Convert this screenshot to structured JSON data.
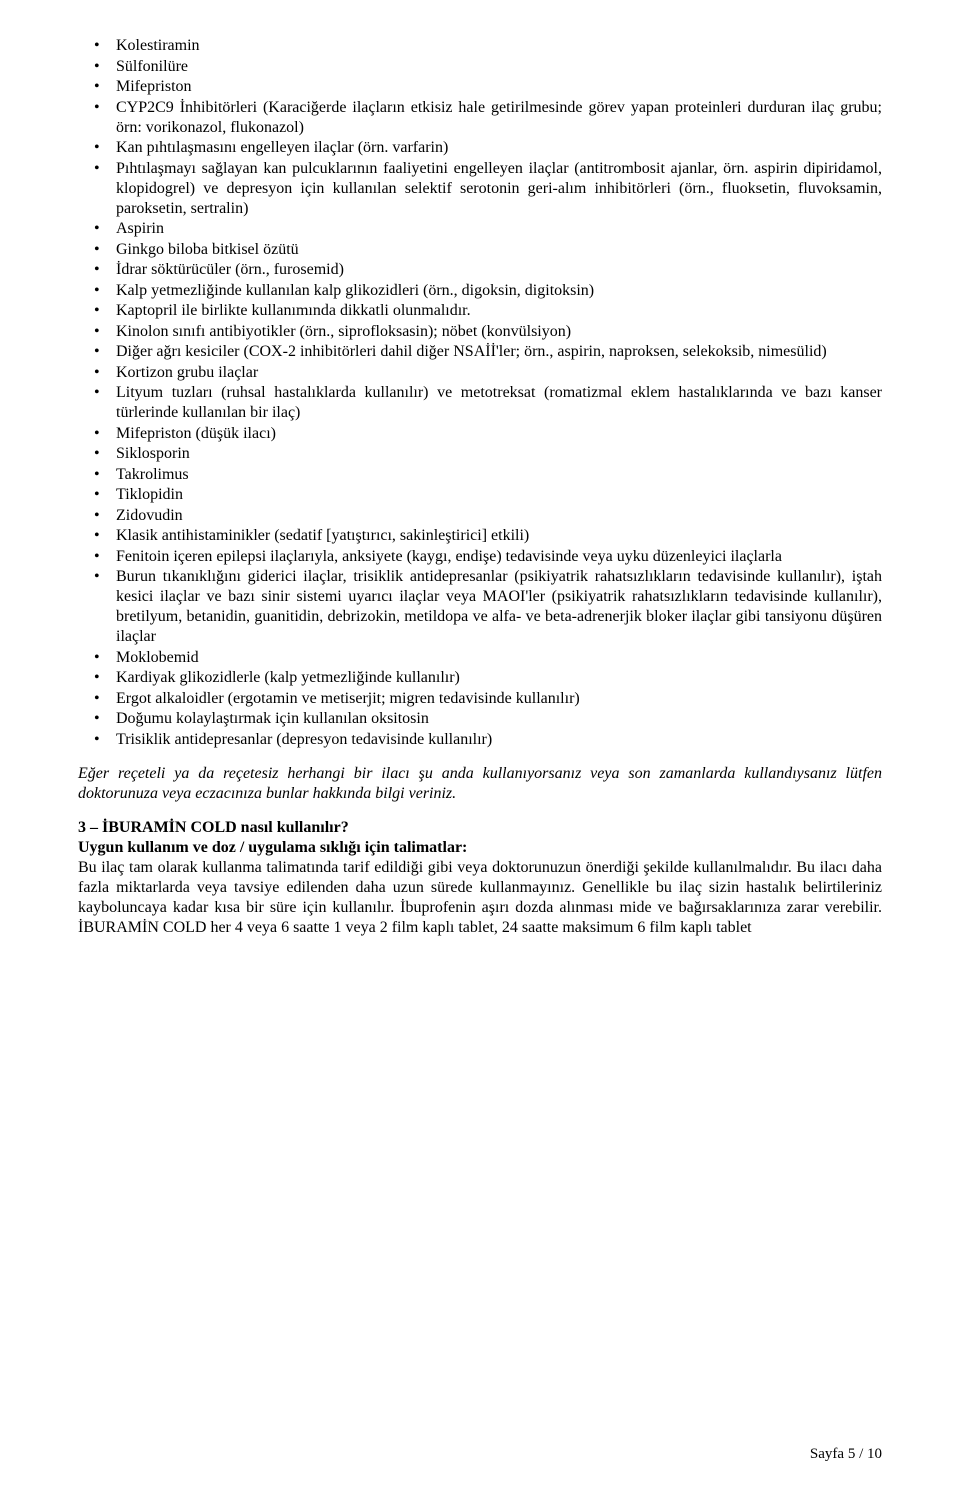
{
  "bullets": [
    "Kolestiramin",
    "Sülfonilüre",
    "Mifepriston",
    "CYP2C9 İnhibitörleri (Karaciğerde ilaçların etkisiz hale getirilmesinde görev yapan proteinleri durduran ilaç grubu; örn: vorikonazol, flukonazol)",
    "Kan pıhtılaşmasını engelleyen ilaçlar (örn. varfarin)",
    "Pıhtılaşmayı sağlayan kan pulcuklarının faaliyetini engelleyen ilaçlar (antitrombosit ajanlar, örn. aspirin dipiridamol, klopidogrel) ve depresyon için kullanılan selektif serotonin geri-alım inhibitörleri (örn., fluoksetin, fluvoksamin, paroksetin, sertralin)",
    "Aspirin",
    "Ginkgo biloba bitkisel özütü",
    "İdrar söktürücüler (örn., furosemid)",
    "Kalp yetmezliğinde kullanılan kalp glikozidleri (örn., digoksin, digitoksin)",
    "Kaptopril ile birlikte kullanımında dikkatli olunmalıdır.",
    "Kinolon sınıfı antibiyotikler (örn., siprofloksasin); nöbet (konvülsiyon)",
    "Diğer ağrı kesiciler (COX-2 inhibitörleri dahil diğer NSAİİ'ler; örn., aspirin, naproksen, selekoksib, nimesülid)",
    "Kortizon grubu ilaçlar",
    "Lityum tuzları (ruhsal hastalıklarda kullanılır) ve metotreksat (romatizmal eklem hastalıklarında ve bazı kanser türlerinde kullanılan bir ilaç)",
    "Mifepriston (düşük ilacı)",
    "Siklosporin",
    "Takrolimus",
    "Tiklopidin",
    "Zidovudin",
    "Klasik antihistaminikler (sedatif [yatıştırıcı, sakinleştirici] etkili)",
    "Fenitoin içeren epilepsi ilaçlarıyla, anksiyete (kaygı, endişe) tedavisinde veya uyku düzenleyici ilaçlarla",
    "Burun tıkanıklığını giderici ilaçlar, trisiklik antidepresanlar (psikiyatrik rahatsızlıkların tedavisinde kullanılır), iştah kesici ilaçlar ve bazı sinir sistemi uyarıcı ilaçlar veya MAOI'ler (psikiyatrik rahatsızlıkların tedavisinde kullanılır), bretilyum, betanidin, guanitidin, debrizokin, metildopa ve alfa- ve beta-adrenerjik bloker ilaçlar gibi tansiyonu düşüren ilaçlar",
    "Moklobemid",
    "Kardiyak glikozidlerle (kalp yetmezliğinde kullanılır)",
    "Ergot alkaloidler (ergotamin ve metiserjit; migren tedavisinde kullanılır)",
    "Doğumu kolaylaştırmak için kullanılan oksitosin",
    "Trisiklik antidepresanlar (depresyon tedavisinde kullanılır)"
  ],
  "noticeItalic": "Eğer reçeteli ya da reçetesiz herhangi bir ilacı şu anda kullanıyorsanız veya son zamanlarda kullandıysanız lütfen doktorunuza veya eczacınıza bunlar hakkında bilgi veriniz.",
  "section3Title": "3 – İBURAMİN COLD nasıl kullanılır?",
  "subheading": "Uygun kullanım ve doz / uygulama sıklığı için talimatlar:",
  "bodyPara": "Bu ilaç tam olarak kullanma talimatında tarif edildiği gibi veya doktorunuzun önerdiği şekilde kullanılmalıdır. Bu ilacı daha fazla miktarlarda veya tavsiye edilenden daha uzun sürede kullanmayınız. Genellikle bu ilaç sizin hastalık belirtileriniz kayboluncaya kadar kısa bir süre için kullanılır. İbuprofenin aşırı dozda alınması mide ve bağırsaklarınıza zarar verebilir. İBURAMİN COLD her 4 veya 6 saatte 1 veya 2 film kaplı tablet, 24 saatte maksimum 6 film kaplı tablet",
  "footer": "Sayfa 5 / 10"
}
